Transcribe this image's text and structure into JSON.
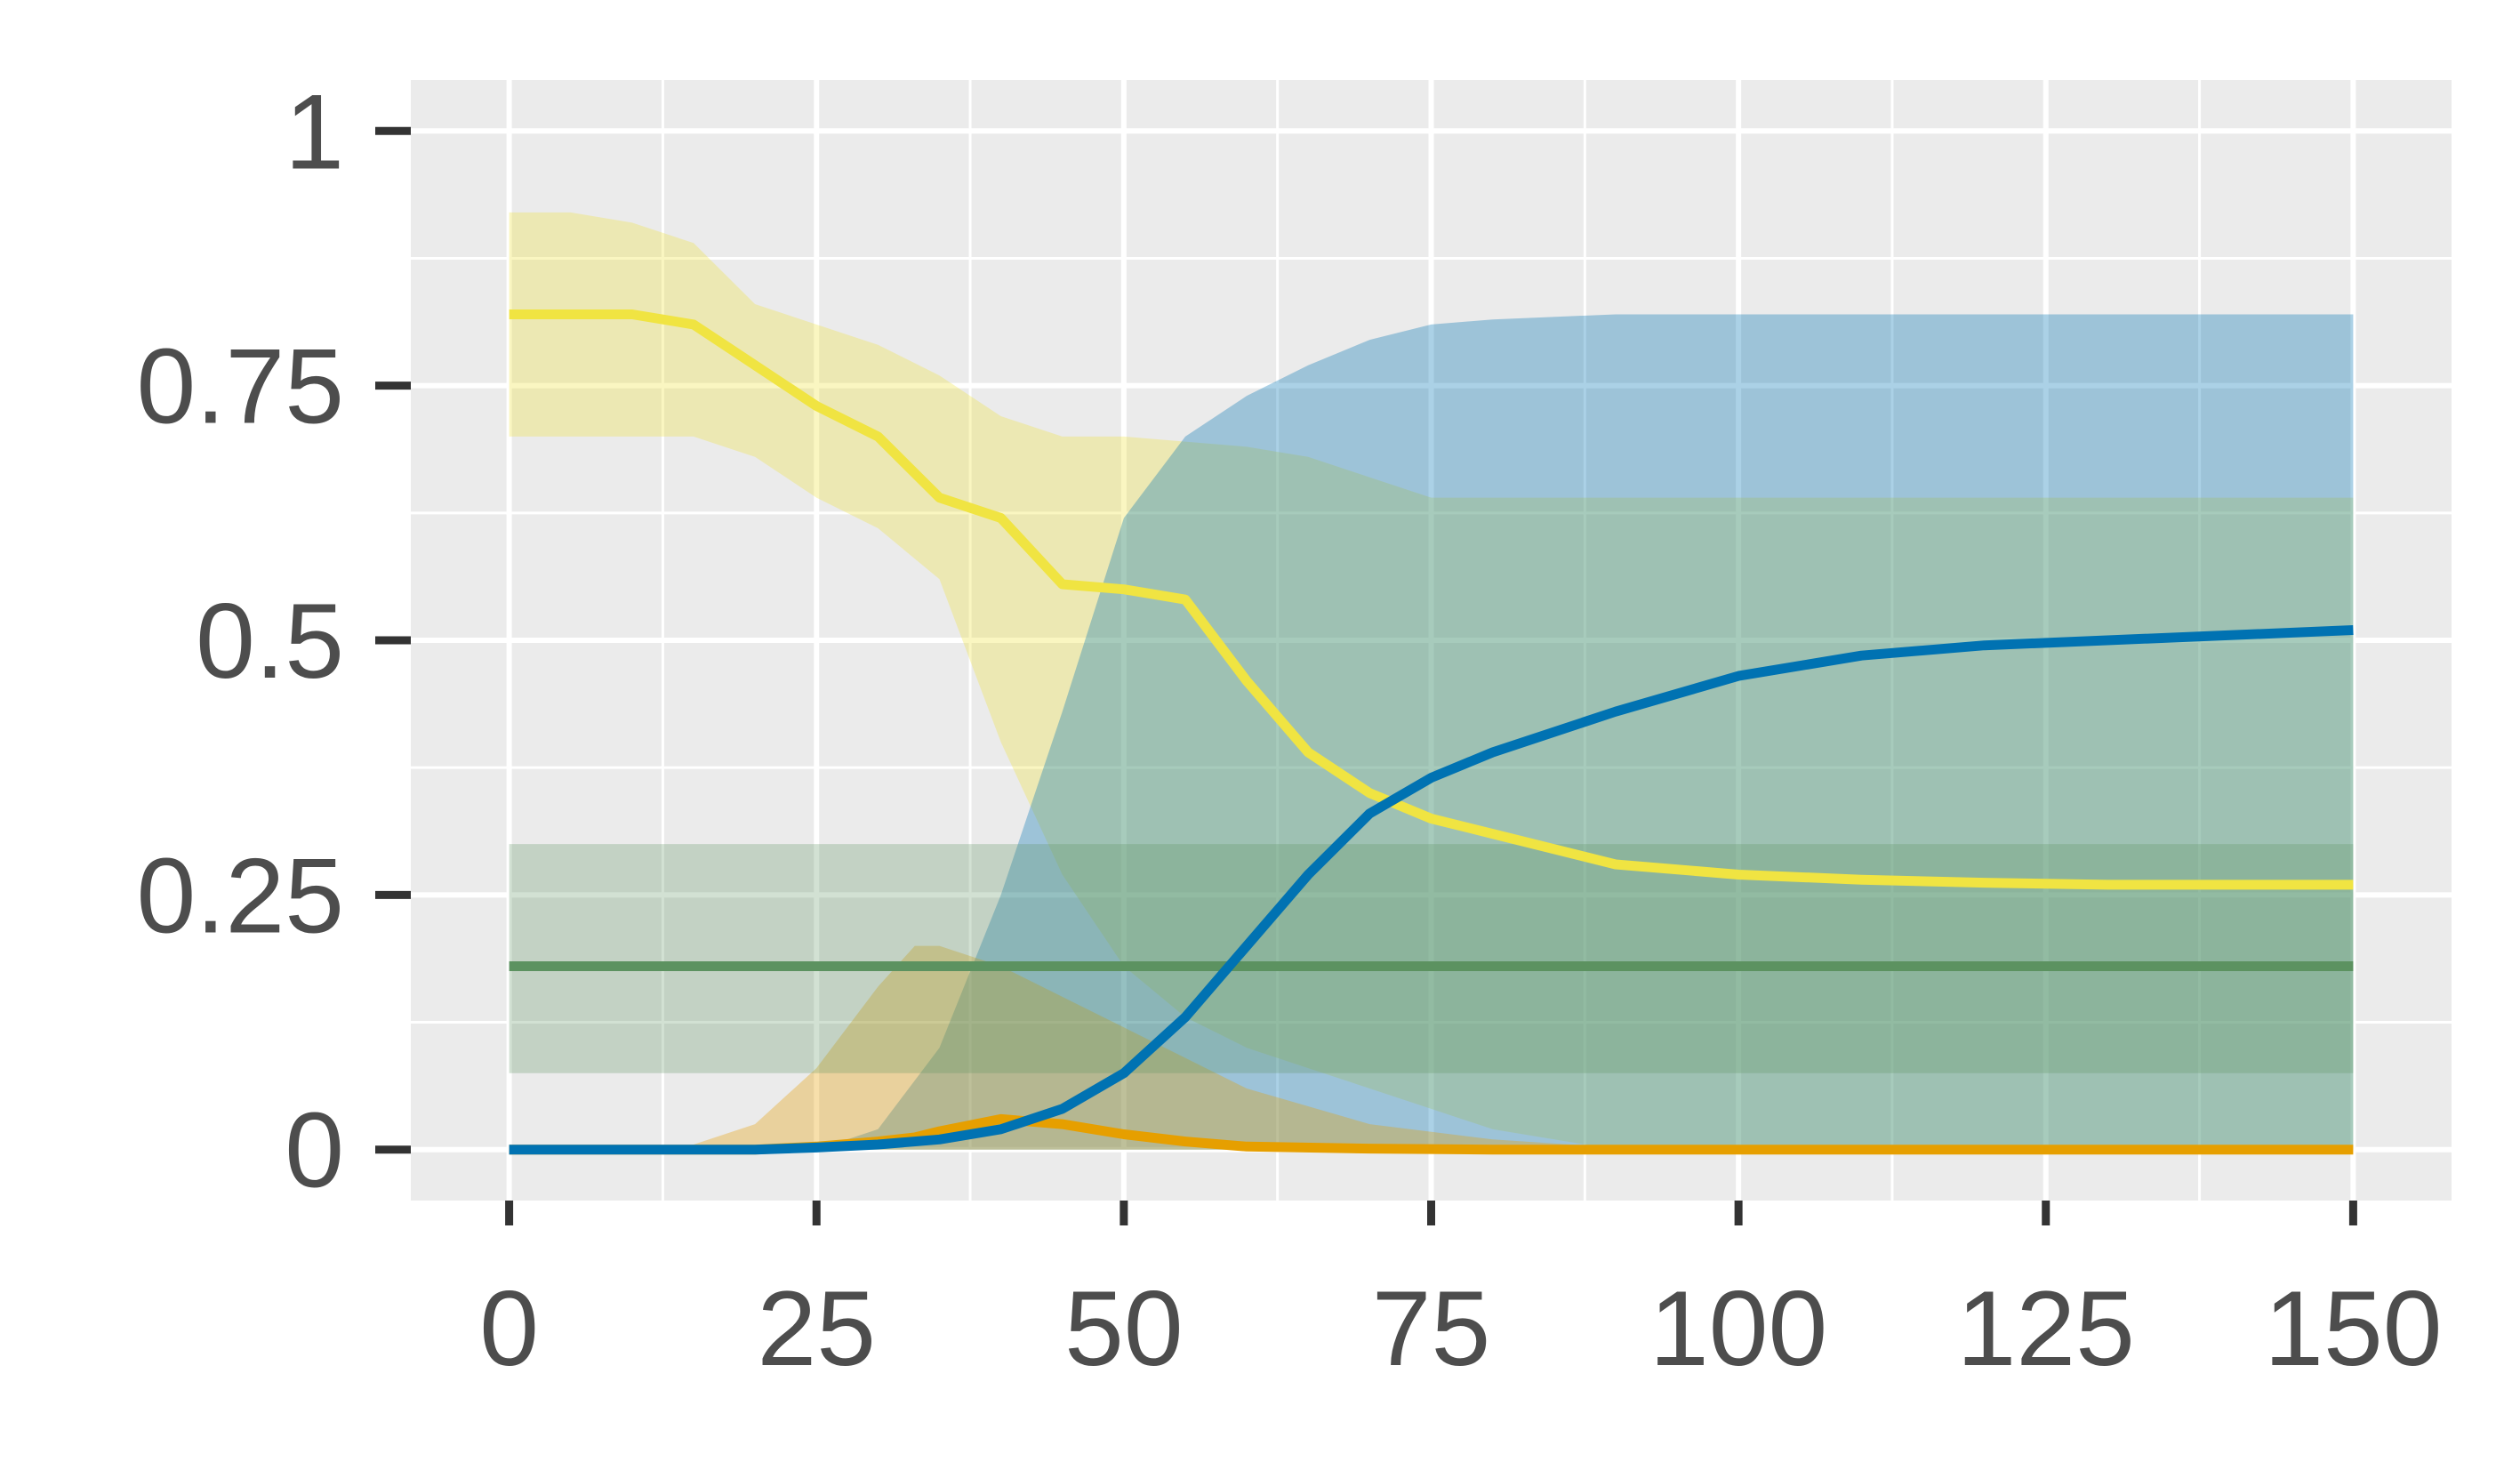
{
  "chart_data": {
    "type": "line",
    "title": "",
    "xlabel": "",
    "ylabel": "",
    "xlim": [
      -8,
      158
    ],
    "ylim": [
      -0.05,
      1.05
    ],
    "grid": true,
    "legend": "none",
    "x_ticks": [
      {
        "value": 0,
        "label": "0"
      },
      {
        "value": 25,
        "label": "25"
      },
      {
        "value": 50,
        "label": "50"
      },
      {
        "value": 75,
        "label": "75"
      },
      {
        "value": 100,
        "label": "100"
      },
      {
        "value": 125,
        "label": "125"
      },
      {
        "value": 150,
        "label": "150"
      }
    ],
    "y_ticks": [
      {
        "value": 0,
        "label": "0"
      },
      {
        "value": 0.25,
        "label": "0.25"
      },
      {
        "value": 0.5,
        "label": "0.5"
      },
      {
        "value": 0.75,
        "label": "0.75"
      },
      {
        "value": 1,
        "label": "1"
      }
    ],
    "series": [
      {
        "name": "yellow",
        "color": "#F0E442",
        "x": [
          0,
          5,
          10,
          15,
          20,
          25,
          30,
          35,
          40,
          45,
          50,
          55,
          60,
          65,
          70,
          75,
          80,
          90,
          100,
          110,
          120,
          130,
          140,
          150
        ],
        "y": [
          0.82,
          0.82,
          0.82,
          0.81,
          0.77,
          0.73,
          0.7,
          0.64,
          0.62,
          0.555,
          0.55,
          0.54,
          0.46,
          0.39,
          0.35,
          0.325,
          0.31,
          0.28,
          0.27,
          0.265,
          0.262,
          0.26,
          0.26,
          0.26
        ],
        "lower": [
          0.7,
          0.7,
          0.7,
          0.7,
          0.68,
          0.64,
          0.61,
          0.56,
          0.4,
          0.27,
          0.18,
          0.13,
          0.1,
          0.08,
          0.06,
          0.04,
          0.02,
          0.0,
          0.0,
          0.0,
          0.0,
          0.0,
          0.0,
          0.0
        ],
        "upper": [
          0.92,
          0.92,
          0.91,
          0.89,
          0.83,
          0.81,
          0.79,
          0.76,
          0.72,
          0.7,
          0.7,
          0.695,
          0.69,
          0.68,
          0.66,
          0.64,
          0.64,
          0.64,
          0.64,
          0.64,
          0.64,
          0.64,
          0.64,
          0.64
        ]
      },
      {
        "name": "blue",
        "color": "#0072B2",
        "x": [
          0,
          10,
          20,
          25,
          30,
          35,
          40,
          45,
          50,
          55,
          60,
          65,
          70,
          75,
          80,
          90,
          100,
          110,
          120,
          130,
          140,
          150
        ],
        "y": [
          0.0,
          0.0,
          0.0,
          0.002,
          0.005,
          0.01,
          0.02,
          0.04,
          0.075,
          0.13,
          0.2,
          0.27,
          0.33,
          0.365,
          0.39,
          0.43,
          0.465,
          0.485,
          0.495,
          0.5,
          0.505,
          0.51
        ],
        "lower": [
          0.0,
          0.0,
          0.0,
          0.0,
          0.0,
          0.0,
          0.0,
          0.0,
          0.0,
          0.0,
          0.0,
          0.0,
          0.0,
          0.0,
          0.0,
          0.0,
          0.0,
          0.0,
          0.0,
          0.0,
          0.0,
          0.0
        ],
        "upper": [
          0.0,
          0.0,
          0.0,
          0.0,
          0.02,
          0.1,
          0.25,
          0.43,
          0.62,
          0.7,
          0.74,
          0.77,
          0.795,
          0.81,
          0.815,
          0.82,
          0.82,
          0.82,
          0.82,
          0.82,
          0.82,
          0.82
        ]
      },
      {
        "name": "orange",
        "color": "#E69F00",
        "x": [
          0,
          10,
          15,
          20,
          25,
          30,
          33,
          35,
          40,
          45,
          50,
          55,
          60,
          70,
          80,
          90,
          100,
          125,
          150
        ],
        "y": [
          0.0,
          0.0,
          0.0,
          0.0,
          0.003,
          0.008,
          0.012,
          0.018,
          0.03,
          0.025,
          0.015,
          0.008,
          0.003,
          0.001,
          0.0,
          0.0,
          0.0,
          0.0,
          0.0
        ],
        "lower": [
          0.0,
          0.0,
          0.0,
          0.0,
          0.0,
          0.0,
          0.0,
          0.0,
          0.0,
          0.0,
          0.0,
          0.0,
          0.0,
          0.0,
          0.0,
          0.0,
          0.0,
          0.0,
          0.0
        ],
        "upper": [
          0.0,
          0.0,
          0.005,
          0.025,
          0.08,
          0.16,
          0.2,
          0.2,
          0.18,
          0.15,
          0.12,
          0.09,
          0.06,
          0.025,
          0.01,
          0.002,
          0.0,
          0.0,
          0.0
        ]
      },
      {
        "name": "green",
        "color": "#5C9260",
        "x": [
          0,
          150
        ],
        "y": [
          0.18,
          0.18
        ],
        "lower": [
          0.075,
          0.075
        ],
        "upper": [
          0.3,
          0.3
        ]
      }
    ]
  }
}
